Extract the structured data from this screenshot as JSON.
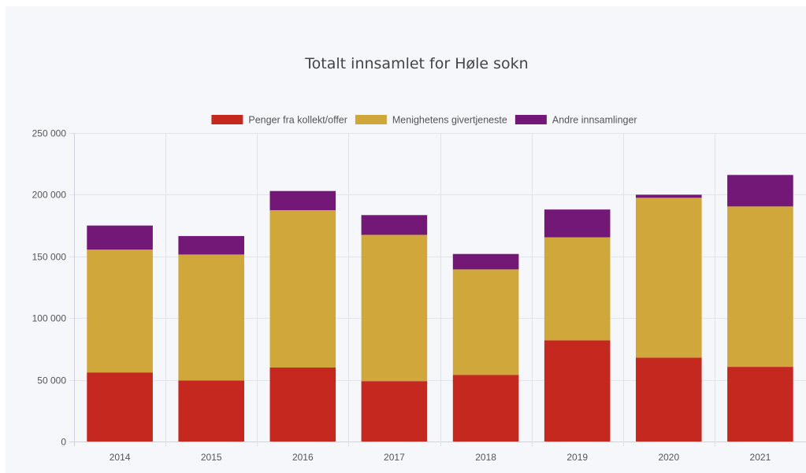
{
  "chart_data": {
    "type": "bar",
    "stacked": true,
    "title": "Totalt innsamlet for Høle sokn",
    "xlabel": "",
    "ylabel": "",
    "categories": [
      "2014",
      "2015",
      "2016",
      "2017",
      "2018",
      "2019",
      "2020",
      "2021"
    ],
    "series": [
      {
        "name": "Penger fra kollekt/offer",
        "color": "#c4281f",
        "values": [
          56000,
          49500,
          60000,
          49000,
          54000,
          82000,
          68000,
          60500
        ]
      },
      {
        "name": "Menighetens givertjeneste",
        "color": "#cfa73a",
        "values": [
          99500,
          102000,
          127500,
          118500,
          85500,
          83500,
          129500,
          130000
        ]
      },
      {
        "name": "Andre innsamlinger",
        "color": "#741878",
        "values": [
          19500,
          15000,
          15500,
          16000,
          12500,
          22500,
          2500,
          25500
        ]
      }
    ],
    "ylim": [
      0,
      250000
    ],
    "yticks": [
      0,
      50000,
      100000,
      150000,
      200000,
      250000
    ],
    "ytick_labels": [
      "0",
      "50 000",
      "100 000",
      "150 000",
      "200 000",
      "250 000"
    ],
    "grid": true,
    "legend_position": "top"
  }
}
